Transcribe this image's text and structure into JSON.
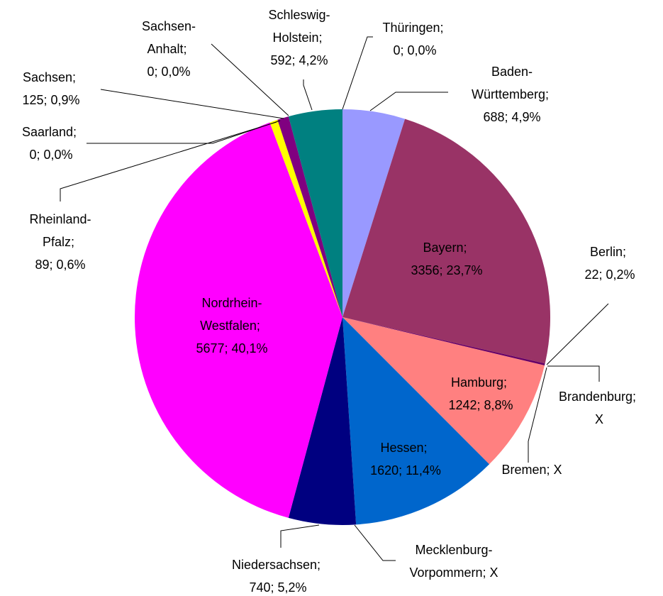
{
  "chart_data": {
    "type": "pie",
    "categories": [
      "Baden-Württemberg",
      "Bayern",
      "Berlin",
      "Brandenburg",
      "Bremen",
      "Hamburg",
      "Hessen",
      "Mecklenburg-Vorpommern",
      "Niedersachsen",
      "Nordrhein-Westfalen",
      "Rheinland-Pfalz",
      "Saarland",
      "Sachsen",
      "Sachsen-Anhalt",
      "Schleswig-Holstein",
      "Thüringen"
    ],
    "values": [
      688,
      3356,
      22,
      null,
      null,
      1242,
      1620,
      null,
      740,
      5677,
      89,
      0,
      125,
      0,
      592,
      0
    ],
    "value_labels": [
      "688",
      "3356",
      "22",
      "X",
      "X",
      "1242",
      "1620",
      "X",
      "740",
      "5677",
      "89",
      "0",
      "125",
      "0",
      "592",
      "0"
    ],
    "percents": [
      4.9,
      23.7,
      0.2,
      null,
      null,
      8.8,
      11.4,
      null,
      5.2,
      40.1,
      0.6,
      0.0,
      0.9,
      0.0,
      4.2,
      0.0
    ],
    "percent_labels": [
      "4,9%",
      "23,7%",
      "0,2%",
      null,
      null,
      "8,8%",
      "11,4%",
      null,
      "5,2%",
      "40,1%",
      "0,6%",
      "0,0%",
      "0,9%",
      "0,0%",
      "4,2%",
      "0,0%"
    ],
    "label_separator": "; ",
    "colors": [
      "#9999ff",
      "#993366",
      "#660066",
      "#ffffcc",
      "#ccffff",
      "#ff8080",
      "#0066cc",
      "#ccccff",
      "#000080",
      "#ff00ff",
      "#ffff00",
      "#00ffff",
      "#800080",
      "#800000",
      "#008080",
      "#0000ff"
    ]
  }
}
